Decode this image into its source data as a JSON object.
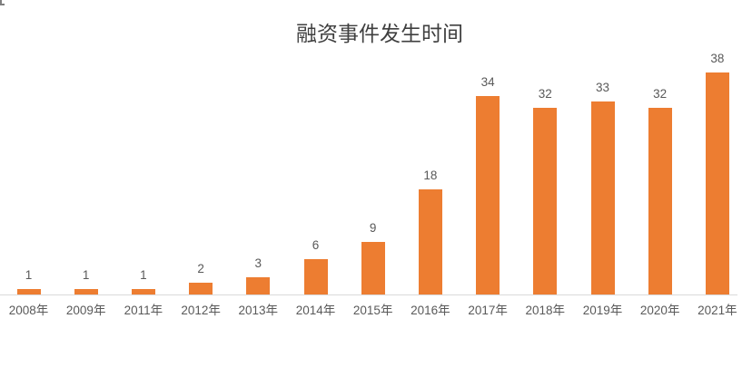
{
  "page": {
    "background_color": "#ffffff"
  },
  "chart_data": {
    "type": "bar",
    "title": "融资事件发生时间",
    "categories": [
      "2008年",
      "2009年",
      "2011年",
      "2012年",
      "2013年",
      "2014年",
      "2015年",
      "2016年",
      "2017年",
      "2018年",
      "2019年",
      "2020年",
      "2021年"
    ],
    "values": [
      1,
      1,
      1,
      2,
      3,
      6,
      9,
      18,
      34,
      32,
      33,
      32,
      38
    ],
    "data_labels": [
      1,
      1,
      1,
      2,
      3,
      6,
      9,
      18,
      34,
      32,
      33,
      32,
      38
    ],
    "xlabel": "",
    "ylabel": "",
    "ylim": [
      0,
      38
    ],
    "grid": false,
    "legend_position": "none",
    "y_axis_visible": false,
    "x_axis_line_visible": true,
    "colors": {
      "bar_fill": "#ED7D31",
      "data_label": "#595959",
      "tick_label": "#595959",
      "axis_line": "#D9D9D9",
      "title": "#3F3F3F"
    }
  }
}
